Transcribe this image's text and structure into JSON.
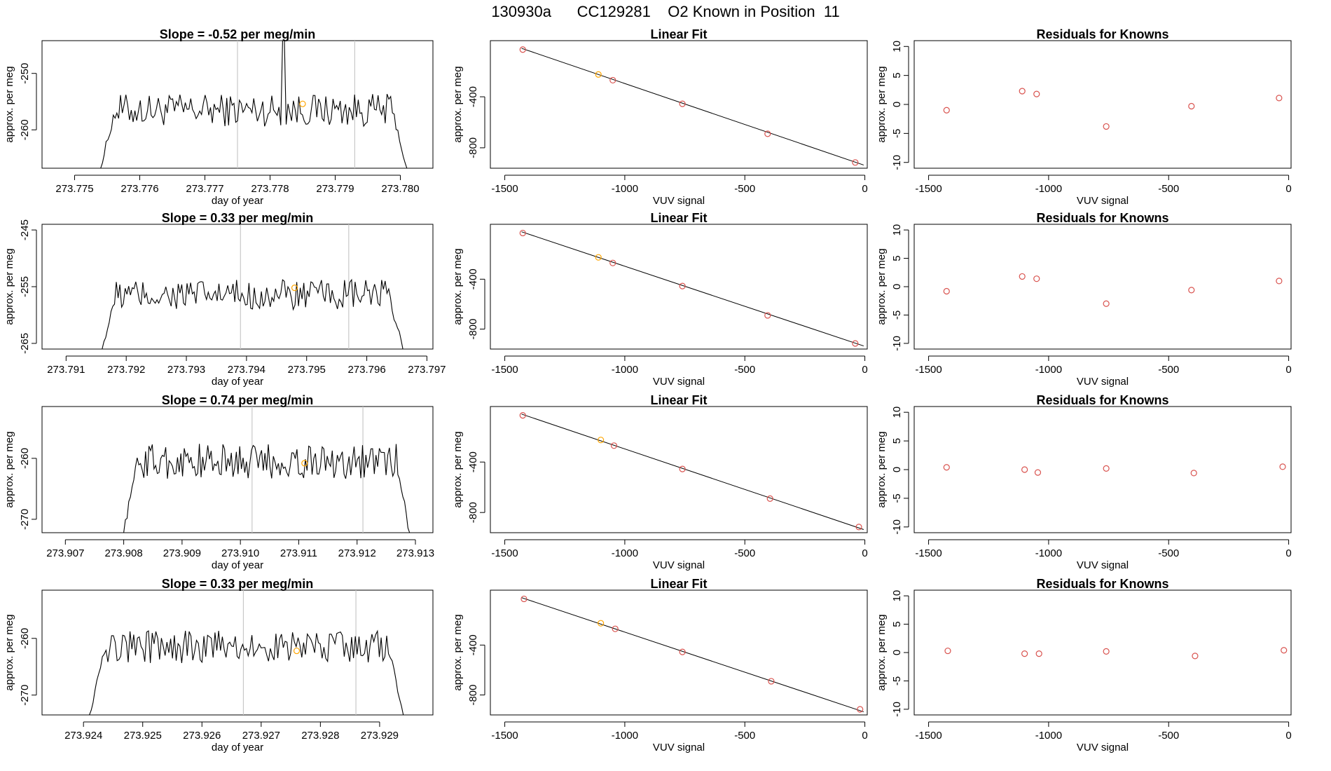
{
  "title": "130930a      CC129281    O2 Known in Position  11",
  "colors": {
    "trace": "#000000",
    "known_point": "#ffa500",
    "resid_point": "#d9534f",
    "fit_line": "#000000",
    "vline": "#c8c8c8",
    "axis": "#000000"
  },
  "chart_data": [
    {
      "type": "line",
      "row": 1,
      "title": "Slope =  -0.52  per meg/min",
      "xlabel": "day of year",
      "ylabel": "approx. per meg",
      "xlim": [
        273.7745,
        273.7805
      ],
      "ylim": [
        -266.8,
        -244.2
      ],
      "xticks": [
        "273.775",
        "273.776",
        "273.777",
        "273.778",
        "273.779",
        "273.780"
      ],
      "yticks": [
        -250,
        -260
      ],
      "vlines": [
        273.7775,
        273.7793
      ],
      "trace_start": 273.7754,
      "trace_end": 273.7801,
      "base": -256.5,
      "amp": 1.8,
      "spike": {
        "x": 273.7782,
        "y": -243
      },
      "known_point": {
        "x": 273.7785,
        "y": -255.4
      }
    },
    {
      "type": "scatter",
      "row": 1,
      "title": "Linear Fit",
      "xlabel": "VUV signal",
      "ylabel": "approx. per meg",
      "xlim": [
        -1560,
        10
      ],
      "ylim": [
        -960,
        40
      ],
      "xticks": [
        -1500,
        -1000,
        -500,
        0
      ],
      "yticks": [
        -400,
        -800
      ],
      "fit_line": {
        "x1": -1430,
        "y1": -20,
        "x2": -5,
        "y2": -935
      },
      "points": [
        {
          "x": -1425,
          "y": -30,
          "known": false
        },
        {
          "x": -1110,
          "y": -225,
          "known": true
        },
        {
          "x": -1050,
          "y": -270,
          "known": false
        },
        {
          "x": -760,
          "y": -455,
          "known": false
        },
        {
          "x": -405,
          "y": -690,
          "known": false
        },
        {
          "x": -40,
          "y": -915,
          "known": false
        }
      ]
    },
    {
      "type": "scatter",
      "row": 1,
      "title": "Residuals for Knowns",
      "xlabel": "VUV signal",
      "ylabel": "approx. per meg",
      "xlim": [
        -1560,
        10
      ],
      "ylim": [
        -11,
        11
      ],
      "xticks": [
        -1500,
        -1000,
        -500,
        0
      ],
      "yticks": [
        10,
        5,
        0,
        -5,
        -10
      ],
      "points": [
        {
          "x": -1425,
          "y": -1
        },
        {
          "x": -1110,
          "y": 2.3
        },
        {
          "x": -1050,
          "y": 1.8
        },
        {
          "x": -760,
          "y": -3.8
        },
        {
          "x": -405,
          "y": -0.3
        },
        {
          "x": -40,
          "y": 1.1
        }
      ]
    },
    {
      "type": "line",
      "row": 2,
      "title": "Slope =  0.33  per meg/min",
      "xlabel": "day of year",
      "ylabel": "approx. per meg",
      "xlim": [
        273.7906,
        273.7971
      ],
      "ylim": [
        -266,
        -244
      ],
      "xticks": [
        "273.791",
        "273.792",
        "273.793",
        "273.794",
        "273.795",
        "273.796",
        "273.797"
      ],
      "yticks": [
        -245,
        -255,
        -265
      ],
      "vlines": [
        273.7939,
        273.7957
      ],
      "trace_start": 273.7916,
      "trace_end": 273.7966,
      "base": -256.5,
      "amp": 1.7,
      "known_point": {
        "x": 273.7948,
        "y": -255.2
      }
    },
    {
      "type": "scatter",
      "row": 2,
      "title": "Linear Fit",
      "xlabel": "VUV signal",
      "ylabel": "approx. per meg",
      "xlim": [
        -1560,
        10
      ],
      "ylim": [
        -960,
        40
      ],
      "xticks": [
        -1500,
        -1000,
        -500,
        0
      ],
      "yticks": [
        -400,
        -800
      ],
      "fit_line": {
        "x1": -1430,
        "y1": -20,
        "x2": -5,
        "y2": -935
      },
      "points": [
        {
          "x": -1425,
          "y": -30,
          "known": false
        },
        {
          "x": -1110,
          "y": -225,
          "known": true
        },
        {
          "x": -1050,
          "y": -270,
          "known": false
        },
        {
          "x": -760,
          "y": -455,
          "known": false
        },
        {
          "x": -405,
          "y": -690,
          "known": false
        },
        {
          "x": -40,
          "y": -915,
          "known": false
        }
      ]
    },
    {
      "type": "scatter",
      "row": 2,
      "title": "Residuals for Knowns",
      "xlabel": "VUV signal",
      "ylabel": "approx. per meg",
      "xlim": [
        -1560,
        10
      ],
      "ylim": [
        -11,
        11
      ],
      "xticks": [
        -1500,
        -1000,
        -500,
        0
      ],
      "yticks": [
        10,
        5,
        0,
        -5,
        -10
      ],
      "points": [
        {
          "x": -1425,
          "y": -0.8
        },
        {
          "x": -1110,
          "y": 1.8
        },
        {
          "x": -1050,
          "y": 1.4
        },
        {
          "x": -760,
          "y": -3
        },
        {
          "x": -405,
          "y": -0.6
        },
        {
          "x": -40,
          "y": 1
        }
      ]
    },
    {
      "type": "line",
      "row": 3,
      "title": "Slope =  0.74  per meg/min",
      "xlabel": "day of year",
      "ylabel": "approx. per meg",
      "xlim": [
        273.9066,
        273.9133
      ],
      "ylim": [
        -272.2,
        -251.5
      ],
      "xticks": [
        "273.907",
        "273.908",
        "273.909",
        "273.910",
        "273.911",
        "273.912",
        "273.913"
      ],
      "yticks": [
        -260,
        -270
      ],
      "vlines": [
        273.9102,
        273.9121
      ],
      "trace_start": 273.908,
      "trace_end": 273.9129,
      "base": -260.5,
      "amp": 1.8,
      "known_point": {
        "x": 273.9111,
        "y": -260.8
      }
    },
    {
      "type": "scatter",
      "row": 3,
      "title": "Linear Fit",
      "xlabel": "VUV signal",
      "ylabel": "approx. per meg",
      "xlim": [
        -1560,
        10
      ],
      "ylim": [
        -960,
        40
      ],
      "xticks": [
        -1500,
        -1000,
        -500,
        0
      ],
      "yticks": [
        -400,
        -800
      ],
      "fit_line": {
        "x1": -1430,
        "y1": -20,
        "x2": -5,
        "y2": -935
      },
      "points": [
        {
          "x": -1425,
          "y": -30,
          "known": false
        },
        {
          "x": -1100,
          "y": -225,
          "known": true
        },
        {
          "x": -1045,
          "y": -270,
          "known": false
        },
        {
          "x": -760,
          "y": -455,
          "known": false
        },
        {
          "x": -395,
          "y": -690,
          "known": false
        },
        {
          "x": -25,
          "y": -915,
          "known": false
        }
      ]
    },
    {
      "type": "scatter",
      "row": 3,
      "title": "Residuals for Knowns",
      "xlabel": "VUV signal",
      "ylabel": "approx. per meg",
      "xlim": [
        -1560,
        10
      ],
      "ylim": [
        -11,
        11
      ],
      "xticks": [
        -1500,
        -1000,
        -500,
        0
      ],
      "yticks": [
        10,
        5,
        0,
        -5,
        -10
      ],
      "points": [
        {
          "x": -1425,
          "y": 0.4
        },
        {
          "x": -1100,
          "y": 0
        },
        {
          "x": -1045,
          "y": -0.5
        },
        {
          "x": -760,
          "y": 0.2
        },
        {
          "x": -395,
          "y": -0.6
        },
        {
          "x": -25,
          "y": 0.5
        }
      ]
    },
    {
      "type": "line",
      "row": 4,
      "title": "Slope =  0.33  per meg/min",
      "xlabel": "day of year",
      "ylabel": "approx. per meg",
      "xlim": [
        273.9233,
        273.9299
      ],
      "ylim": [
        -273.5,
        -251.5
      ],
      "xticks": [
        "273.924",
        "273.925",
        "273.926",
        "273.927",
        "273.928",
        "273.929"
      ],
      "yticks": [
        -260,
        -270
      ],
      "vlines": [
        273.9267,
        273.9286
      ],
      "trace_start": 273.9241,
      "trace_end": 273.9294,
      "base": -261.5,
      "amp": 1.8,
      "known_point": {
        "x": 273.9276,
        "y": -262.2
      }
    },
    {
      "type": "scatter",
      "row": 4,
      "title": "Linear Fit",
      "xlabel": "VUV signal",
      "ylabel": "approx. per meg",
      "xlim": [
        -1560,
        10
      ],
      "ylim": [
        -960,
        40
      ],
      "xticks": [
        -1500,
        -1000,
        -500,
        0
      ],
      "yticks": [
        -400,
        -800
      ],
      "fit_line": {
        "x1": -1430,
        "y1": -20,
        "x2": -5,
        "y2": -935
      },
      "points": [
        {
          "x": -1420,
          "y": -30,
          "known": false
        },
        {
          "x": -1100,
          "y": -225,
          "known": true
        },
        {
          "x": -1040,
          "y": -270,
          "known": false
        },
        {
          "x": -760,
          "y": -455,
          "known": false
        },
        {
          "x": -390,
          "y": -690,
          "known": false
        },
        {
          "x": -20,
          "y": -915,
          "known": false
        }
      ]
    },
    {
      "type": "scatter",
      "row": 4,
      "title": "Residuals for Knowns",
      "xlabel": "VUV signal",
      "ylabel": "approx. per meg",
      "xlim": [
        -1560,
        10
      ],
      "ylim": [
        -11,
        11
      ],
      "xticks": [
        -1500,
        -1000,
        -500,
        0
      ],
      "yticks": [
        10,
        5,
        0,
        -5,
        -10
      ],
      "points": [
        {
          "x": -1420,
          "y": 0.3
        },
        {
          "x": -1100,
          "y": -0.2
        },
        {
          "x": -1040,
          "y": -0.2
        },
        {
          "x": -760,
          "y": 0.2
        },
        {
          "x": -390,
          "y": -0.6
        },
        {
          "x": -20,
          "y": 0.4
        }
      ]
    }
  ]
}
